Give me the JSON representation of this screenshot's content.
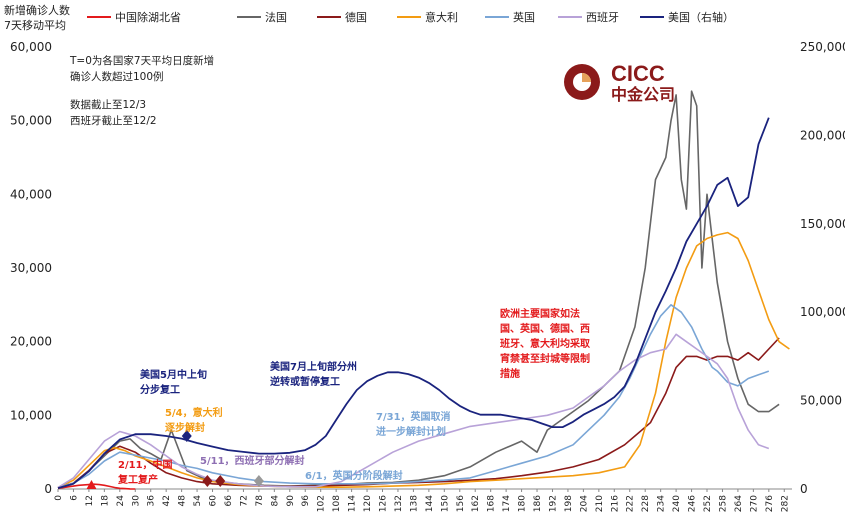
{
  "chart_data": {
    "type": "line",
    "ylabel": "新增确诊人数\n7天移动平均",
    "left_axis": {
      "ylim": [
        0,
        60000
      ],
      "ticks": [
        "0",
        "10,000",
        "20,000",
        "30,000",
        "40,000",
        "50,000",
        "60,000"
      ]
    },
    "right_axis": {
      "ylim": [
        0,
        250000
      ],
      "ticks": [
        "0",
        "50,000",
        "100,000",
        "150,000",
        "200,000",
        "250,000"
      ]
    },
    "x_ticks": [
      0,
      6,
      12,
      18,
      24,
      30,
      36,
      42,
      48,
      54,
      60,
      66,
      72,
      78,
      84,
      90,
      96,
      102,
      108,
      114,
      120,
      126,
      132,
      138,
      144,
      150,
      156,
      162,
      168,
      174,
      180,
      186,
      192,
      198,
      204,
      210,
      216,
      222,
      228,
      234,
      240,
      246,
      252,
      258,
      264,
      270,
      276,
      282
    ],
    "legend": [
      "中国除湖北省",
      "法国",
      "德国",
      "意大利",
      "英国",
      "西班牙",
      "美国（右轴）"
    ],
    "notes": [
      "T=0为各国家7天平均日度新增确诊人数超过100例",
      "数据截止至12/3",
      "西班牙截止至12/2"
    ],
    "logo": {
      "text": "CICC",
      "subtext": "中金公司"
    },
    "annotations": [
      {
        "text": "美国5月中上旬\n分步复工",
        "color": "#1a237e"
      },
      {
        "text": "5/4，意大利\n逐步解封",
        "color": "#f39c12"
      },
      {
        "text": "2/11，中国\n复工复产",
        "color": "#e31a1c"
      },
      {
        "text": "5/11，西班牙部分解封",
        "color": "#8e6fb3"
      },
      {
        "text": "6/1，英国分阶段解封",
        "color": "#7aa6d6"
      },
      {
        "text": "美国7月上旬部分州\n逆转或暂停复工",
        "color": "#1a237e"
      },
      {
        "text": "7/31，英国取消\n进一步解封计划",
        "color": "#7aa6d6"
      },
      {
        "text": "欧洲主要国家如法\n国、英国、德国、西\n班牙、意大利均采取\n宵禁甚至封城等限制\n措施",
        "color": "#e31a1c"
      }
    ],
    "series": [
      {
        "name": "中国除湖北省",
        "color": "#e31a1c",
        "axis": "left",
        "x": [
          0,
          4,
          8,
          12,
          14,
          16,
          18,
          20,
          22,
          24,
          26,
          28,
          30
        ],
        "y": [
          100,
          300,
          500,
          600,
          650,
          600,
          500,
          350,
          200,
          100,
          50,
          20,
          0
        ]
      },
      {
        "name": "法国",
        "color": "#666666",
        "axis": "left",
        "x": [
          0,
          6,
          12,
          18,
          24,
          28,
          32,
          36,
          40,
          44,
          50,
          56,
          62,
          70,
          80,
          90,
          100,
          110,
          120,
          130,
          140,
          150,
          160,
          170,
          180,
          186,
          190,
          196,
          200,
          206,
          212,
          218,
          224,
          228,
          232,
          236,
          238,
          240,
          242,
          244,
          246,
          248,
          250,
          252,
          256,
          260,
          264,
          268,
          272,
          276,
          280
        ],
        "y": [
          200,
          800,
          2500,
          4500,
          6500,
          6800,
          5500,
          4800,
          4000,
          8000,
          2500,
          1500,
          1000,
          700,
          500,
          400,
          500,
          600,
          800,
          900,
          1200,
          1800,
          3000,
          5000,
          6500,
          5000,
          8000,
          9500,
          10500,
          12000,
          14000,
          16000,
          22000,
          30000,
          42000,
          45000,
          50000,
          53500,
          42000,
          38000,
          54000,
          52000,
          30000,
          40000,
          28000,
          20000,
          15000,
          11500,
          10500,
          10500,
          11500
        ]
      },
      {
        "name": "德国",
        "color": "#8b1a1a",
        "axis": "left",
        "x": [
          0,
          6,
          12,
          18,
          24,
          30,
          36,
          42,
          48,
          54,
          60,
          70,
          80,
          90,
          100,
          110,
          120,
          130,
          140,
          150,
          160,
          170,
          180,
          190,
          200,
          210,
          220,
          230,
          236,
          240,
          244,
          248,
          252,
          256,
          260,
          264,
          268,
          272,
          276,
          280
        ],
        "y": [
          150,
          800,
          2500,
          4800,
          5800,
          5000,
          3500,
          2200,
          1500,
          1000,
          700,
          500,
          400,
          350,
          400,
          500,
          600,
          800,
          900,
          1000,
          1200,
          1400,
          1800,
          2300,
          3000,
          4000,
          6000,
          9000,
          13000,
          16500,
          18000,
          18000,
          17500,
          18000,
          18000,
          17500,
          18500,
          17500,
          19000,
          20500
        ]
      },
      {
        "name": "意大利",
        "color": "#f39c12",
        "axis": "left",
        "x": [
          0,
          6,
          12,
          18,
          22,
          26,
          30,
          36,
          42,
          48,
          54,
          60,
          70,
          80,
          90,
          100,
          110,
          120,
          130,
          140,
          150,
          160,
          170,
          180,
          190,
          200,
          210,
          220,
          226,
          232,
          236,
          240,
          244,
          248,
          252,
          256,
          260,
          264,
          268,
          272,
          276,
          280,
          284
        ],
        "y": [
          200,
          1200,
          3200,
          5200,
          5600,
          5200,
          4500,
          3800,
          3000,
          2200,
          1500,
          1000,
          600,
          400,
          300,
          250,
          250,
          300,
          400,
          500,
          700,
          1000,
          1200,
          1400,
          1600,
          1800,
          2200,
          3000,
          6000,
          13000,
          20000,
          26000,
          30000,
          33000,
          34000,
          34500,
          34800,
          34000,
          31000,
          27000,
          23000,
          20000,
          19000
        ]
      },
      {
        "name": "英国",
        "color": "#7aa6d6",
        "axis": "left",
        "x": [
          0,
          6,
          12,
          18,
          24,
          30,
          36,
          42,
          48,
          54,
          60,
          70,
          80,
          90,
          100,
          110,
          120,
          130,
          140,
          150,
          160,
          170,
          180,
          190,
          200,
          206,
          212,
          218,
          222,
          226,
          230,
          234,
          238,
          242,
          246,
          250,
          254,
          256,
          260,
          264,
          268,
          272,
          276
        ],
        "y": [
          200,
          800,
          2000,
          3800,
          5000,
          4600,
          4200,
          3800,
          3200,
          2800,
          2200,
          1500,
          1000,
          800,
          700,
          700,
          700,
          800,
          1000,
          1200,
          1500,
          2500,
          3500,
          4500,
          6000,
          8000,
          10000,
          12500,
          15000,
          18000,
          21000,
          23500,
          25000,
          24000,
          22000,
          19000,
          16500,
          16000,
          14500,
          14000,
          15000,
          15500,
          16000
        ]
      },
      {
        "name": "西班牙",
        "color": "#b8a2d8",
        "axis": "left",
        "x": [
          0,
          6,
          12,
          18,
          24,
          30,
          36,
          42,
          48,
          54,
          60,
          70,
          80,
          90,
          100,
          110,
          120,
          130,
          140,
          150,
          160,
          170,
          180,
          190,
          200,
          206,
          212,
          218,
          224,
          230,
          236,
          240,
          244,
          248,
          252,
          256,
          260,
          264,
          268,
          272,
          276
        ],
        "y": [
          200,
          1500,
          4000,
          6500,
          7800,
          7200,
          6000,
          4500,
          3000,
          2000,
          1200,
          700,
          400,
          300,
          300,
          1000,
          3000,
          5000,
          6500,
          7500,
          8500,
          9000,
          9500,
          10000,
          11000,
          12500,
          14000,
          16000,
          17500,
          18500,
          19000,
          21000,
          20000,
          19000,
          18000,
          17000,
          15000,
          11000,
          8000,
          6000,
          5500
        ]
      },
      {
        "name": "美国（右轴）",
        "color": "#1a237e",
        "axis": "right",
        "x": [
          0,
          6,
          12,
          18,
          24,
          30,
          36,
          42,
          48,
          54,
          60,
          66,
          72,
          78,
          84,
          90,
          96,
          100,
          104,
          108,
          112,
          116,
          120,
          124,
          128,
          132,
          136,
          140,
          144,
          148,
          152,
          156,
          160,
          164,
          168,
          172,
          176,
          180,
          184,
          188,
          192,
          196,
          200,
          204,
          208,
          212,
          216,
          220,
          224,
          228,
          232,
          236,
          240,
          244,
          248,
          252,
          256,
          260,
          264,
          268,
          272,
          276
        ],
        "y": [
          500,
          3000,
          10000,
          20000,
          28000,
          31000,
          31000,
          30000,
          28500,
          26000,
          24000,
          22000,
          21000,
          20000,
          20000,
          20500,
          22000,
          25000,
          30000,
          39000,
          48000,
          56000,
          61000,
          64000,
          66000,
          66000,
          65000,
          63000,
          60000,
          56000,
          51000,
          47000,
          44000,
          42000,
          42000,
          42000,
          41000,
          40000,
          39000,
          37000,
          35000,
          35000,
          38000,
          42000,
          45000,
          48000,
          52000,
          58000,
          70000,
          85000,
          100000,
          112000,
          125000,
          140000,
          150000,
          160000,
          172000,
          176000,
          160000,
          165000,
          195000,
          210000
        ]
      }
    ]
  }
}
